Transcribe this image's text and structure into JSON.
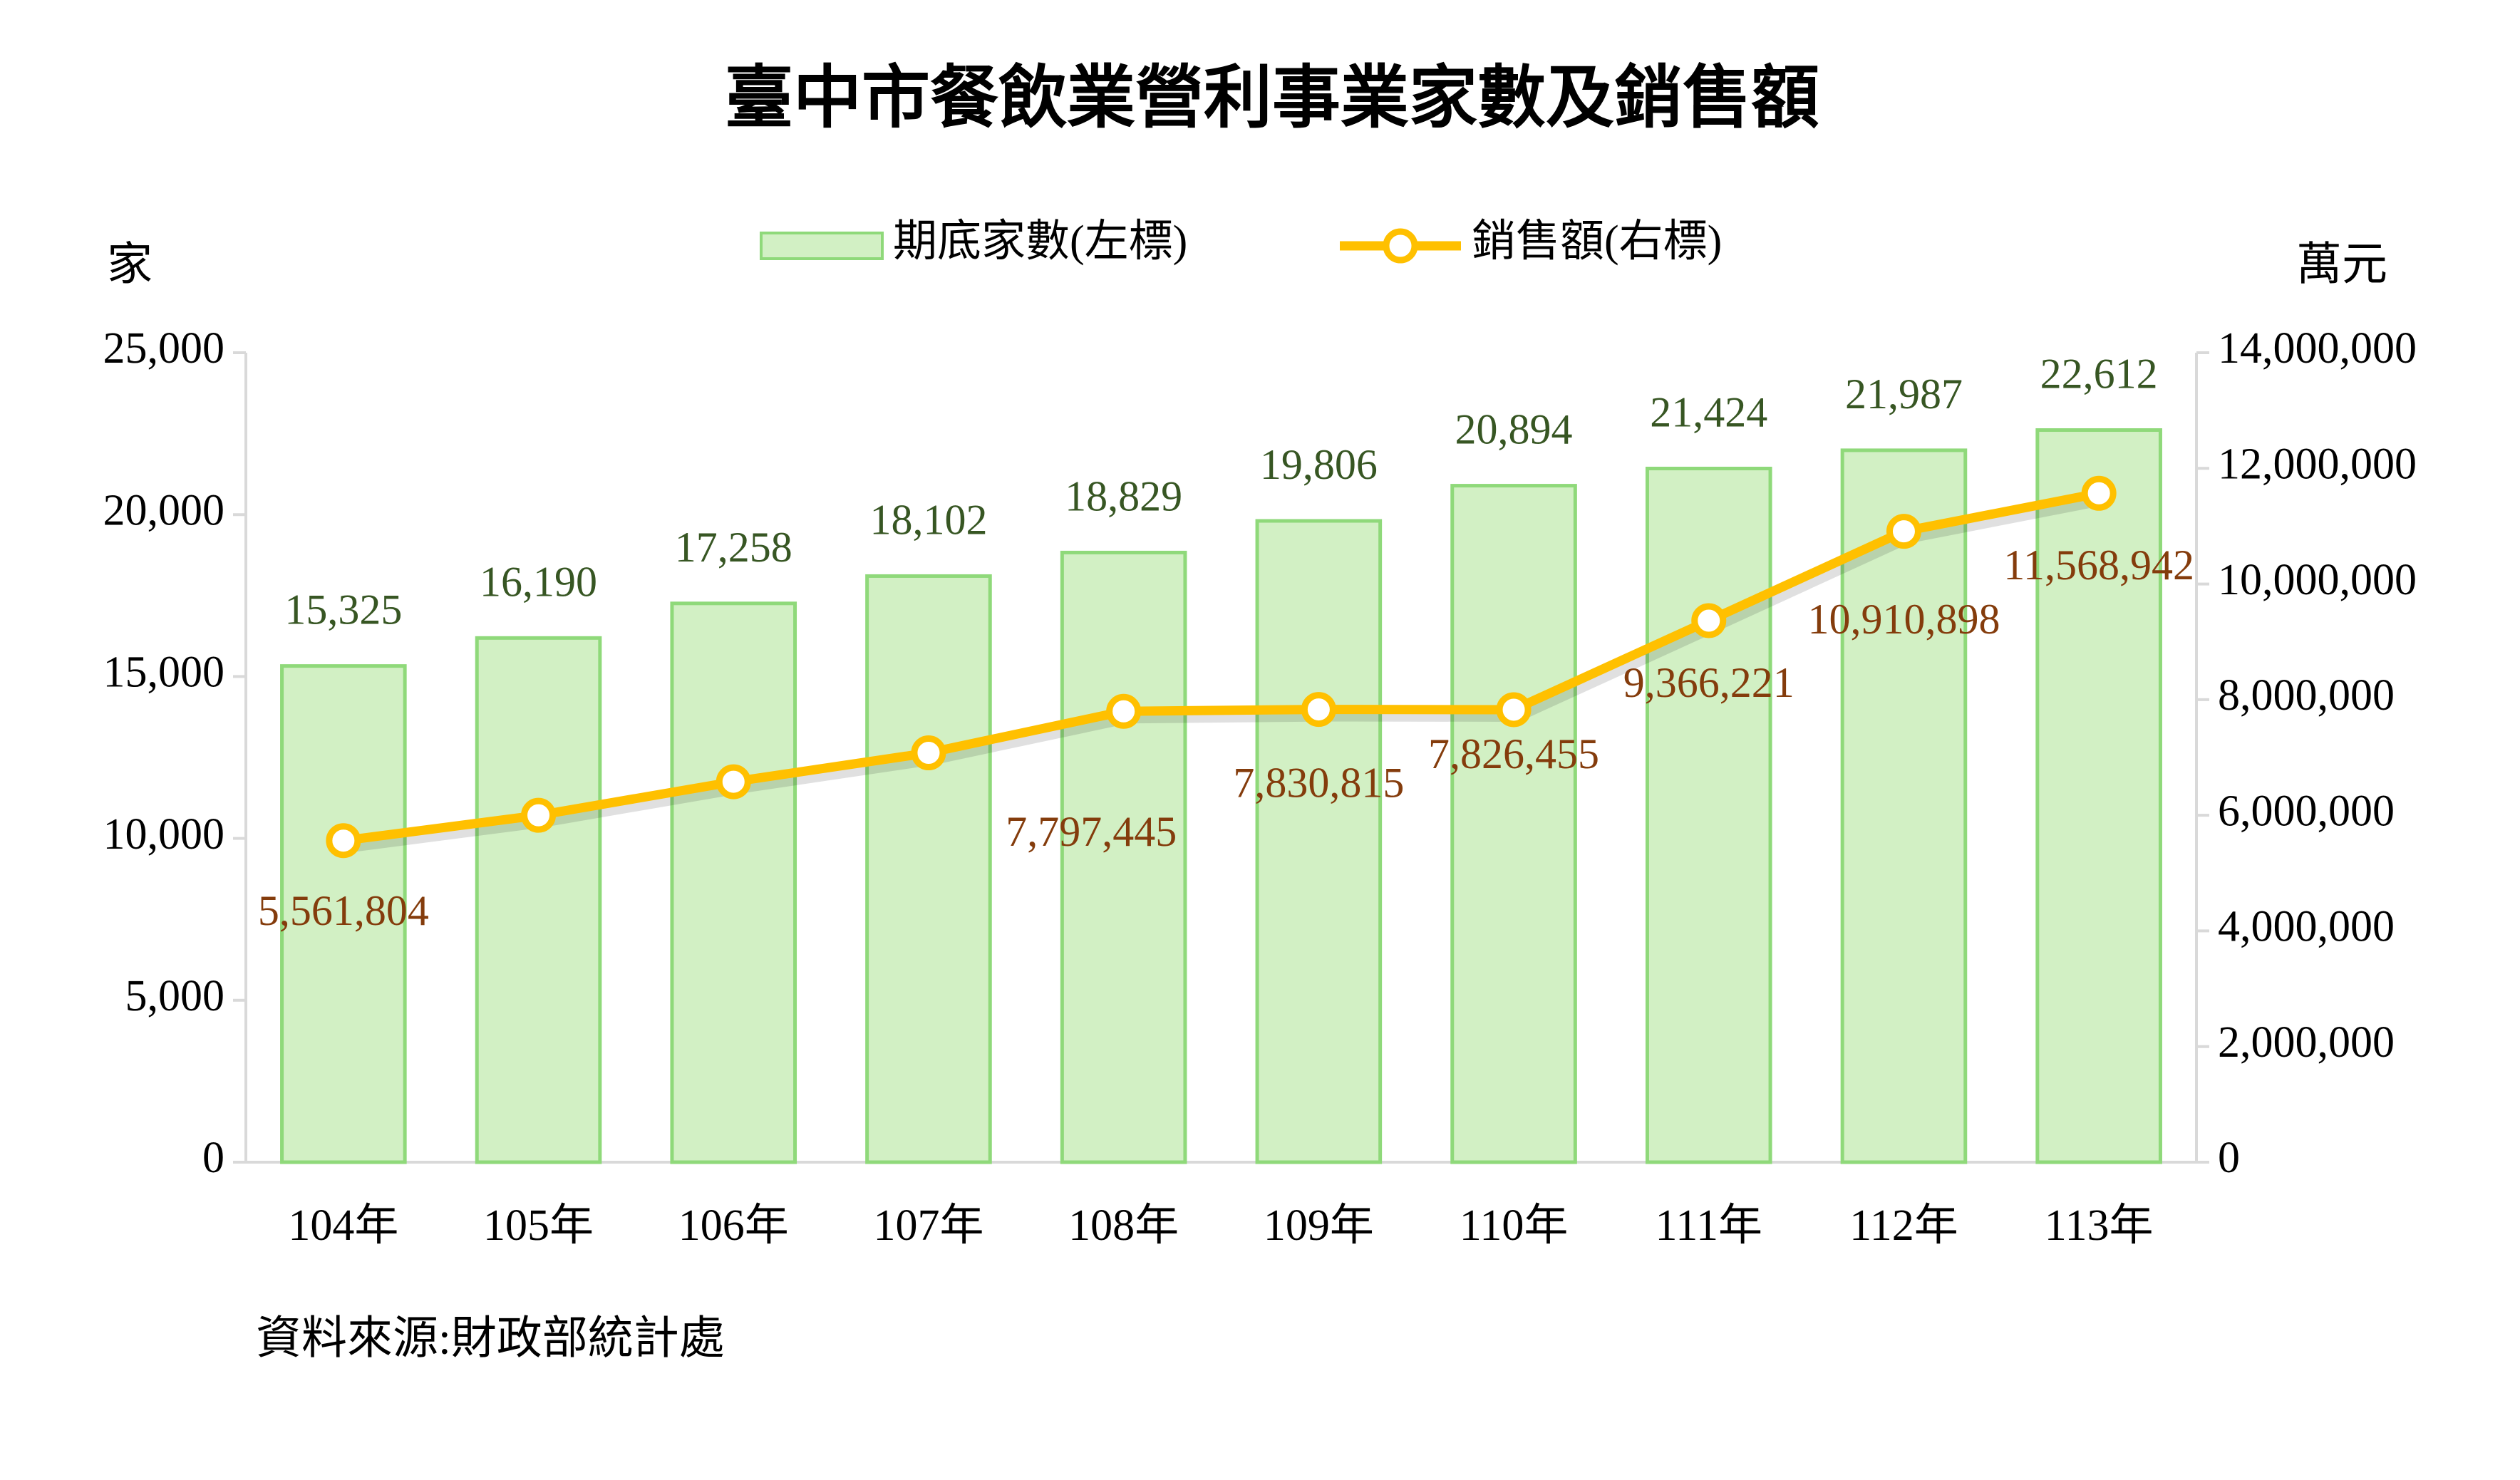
{
  "chart_data": {
    "type": "bar_line",
    "title": "臺中市餐飲業營利事業家數及銷售額",
    "y_label": "家",
    "y2_label": "萬元",
    "source": "資料來源:財政部統計處",
    "categories": [
      "104年",
      "105年",
      "106年",
      "107年",
      "108年",
      "109年",
      "110年",
      "111年",
      "112年",
      "113年"
    ],
    "series": [
      {
        "name": "期底家數(左標)",
        "type": "bar",
        "color": "#d2f0c4",
        "edge_color": "#8fd97a",
        "label_color": "#375623",
        "values": [
          15325,
          16190,
          17258,
          18102,
          18829,
          19806,
          20894,
          21424,
          21987,
          22612
        ],
        "value_labels": [
          "15,325",
          "16,190",
          "17,258",
          "18,102",
          "18,829",
          "19,806",
          "20,894",
          "21,424",
          "21,987",
          "22,612"
        ]
      },
      {
        "name": "銷售額(右標)",
        "type": "line",
        "axis": "y2",
        "color": "#ffc000",
        "label_color": "#843c0c",
        "values": [
          5561804,
          6000000,
          6580000,
          7080000,
          7797445,
          7830815,
          7826455,
          9366221,
          10910898,
          11568942
        ],
        "value_labels": [
          "5,561,804",
          null,
          null,
          null,
          "7,797,445",
          "7,830,815",
          "7,826,455",
          "9,366,221",
          "10,910,898",
          "11,568,942"
        ]
      }
    ],
    "ylim": [
      0,
      25000
    ],
    "yticks": [
      0,
      {
        "value": 5000,
        "label": "5,000"
      },
      {
        "value": 10000,
        "label": "10,000"
      },
      {
        "value": 15000,
        "label": "15,000"
      },
      {
        "value": 20000,
        "label": "20,000"
      },
      {
        "value": 25000,
        "label": "25,000"
      }
    ],
    "y2lim": [
      0,
      14000000
    ],
    "y2ticks": [
      0,
      {
        "value": 2000000,
        "label": "2,000,000"
      },
      {
        "value": 4000000,
        "label": "4,000,000"
      },
      {
        "value": 6000000,
        "label": "6,000,000"
      },
      {
        "value": 8000000,
        "label": "8,000,000"
      },
      {
        "value": 10000000,
        "label": "10,000,000"
      },
      {
        "value": 12000000,
        "label": "12,000,000"
      },
      {
        "value": 14000000,
        "label": "14,000,000"
      }
    ],
    "grid": false
  }
}
